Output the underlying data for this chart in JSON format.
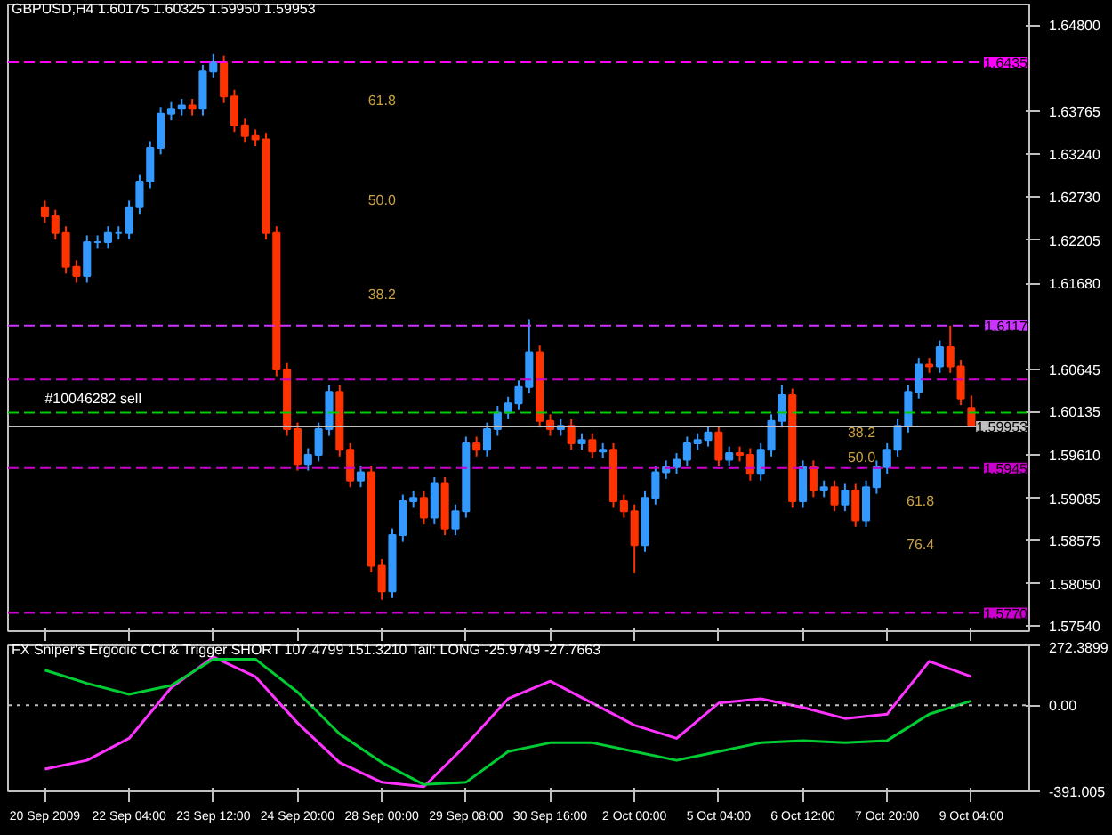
{
  "chart_data": [
    {
      "type": "candlestick",
      "title": "GBPUSD,H4  1.60175 1.60325 1.59950 1.59953",
      "tick_labels": "y",
      "grid": false,
      "categories": [
        "20 Sep 2009",
        null,
        null,
        null,
        null,
        null,
        null,
        null,
        "22 Sep 04:00",
        null,
        null,
        null,
        null,
        null,
        null,
        null,
        "23 Sep 12:00",
        null,
        null,
        null,
        null,
        null,
        null,
        null,
        "24 Sep 20:00",
        null,
        null,
        null,
        null,
        null,
        null,
        null,
        "28 Sep 00:00",
        null,
        null,
        null,
        null,
        null,
        null,
        null,
        "29 Sep 08:00",
        null,
        null,
        null,
        null,
        null,
        null,
        null,
        "30 Sep 16:00",
        null,
        null,
        null,
        null,
        null,
        null,
        null,
        "2 Oct 00:00",
        null,
        null,
        null,
        null,
        null,
        null,
        null,
        "5 Oct 04:00",
        null,
        null,
        null,
        null,
        null,
        null,
        null,
        "6 Oct 12:00",
        null,
        null,
        null,
        null,
        null,
        null,
        null,
        "7 Oct 20:00",
        null,
        null,
        null,
        null,
        null,
        null,
        null,
        "9 Oct 04:00"
      ],
      "colors": [
        "#ff3300",
        "#ff3300",
        "#ff3300",
        "#ff3300",
        "#3399ff",
        "#3399ff",
        "#3399ff",
        "#3399ff",
        "#3399ff",
        "#3399ff",
        "#3399ff",
        "#3399ff",
        "#3399ff",
        "#3399ff",
        "#ff3300",
        "#3399ff",
        "#3399ff",
        "#ff3300",
        "#ff3300",
        "#ff3300",
        "#ff3300",
        "#ff3300",
        "#ff3300",
        "#ff3300",
        "#ff3300",
        "#3399ff",
        "#3399ff",
        "#3399ff",
        "#ff3300",
        "#ff3300",
        "#3399ff",
        "#ff3300",
        "#ff3300",
        "#3399ff",
        "#3399ff",
        "#3399ff",
        "#ff3300",
        "#3399ff",
        "#ff3300",
        "#3399ff",
        "#3399ff",
        "#ff3300",
        "#3399ff",
        "#3399ff",
        "#3399ff",
        "#3399ff",
        "#3399ff",
        "#ff3300",
        "#ff3300",
        "#3399ff",
        "#ff3300",
        "#3399ff",
        "#ff3300",
        "#3399ff",
        "#ff3300",
        "#ff3300",
        "#ff3300",
        "#3399ff",
        "#3399ff",
        "#3399ff",
        "#3399ff",
        "#3399ff",
        "#3399ff",
        "#3399ff",
        "#ff3300",
        "#3399ff",
        "#ff3300",
        "#ff3300",
        "#3399ff",
        "#3399ff",
        "#3399ff",
        "#ff3300",
        "#3399ff",
        "#ff3300",
        "#3399ff",
        "#ff3300",
        "#3399ff",
        "#ff3300",
        "#3399ff",
        "#3399ff",
        "#3399ff",
        "#3399ff",
        "#3399ff",
        "#3399ff",
        "#ff3300",
        "#3399ff",
        "#ff3300",
        "#ff3300",
        "#ff3300"
      ],
      "ohlc": [
        [
          1.626,
          1.6268,
          1.6241,
          1.6249
        ],
        [
          1.6249,
          1.6257,
          1.6221,
          1.6229
        ],
        [
          1.6229,
          1.6237,
          1.618,
          1.6188
        ],
        [
          1.6188,
          1.6196,
          1.6169,
          1.6177
        ],
        [
          1.6177,
          1.6226,
          1.6169,
          1.6218
        ],
        [
          1.6218,
          1.6226,
          1.621,
          1.6218
        ],
        [
          1.6218,
          1.6237,
          1.621,
          1.6229
        ],
        [
          1.6229,
          1.6237,
          1.6221,
          1.6229
        ],
        [
          1.6229,
          1.6268,
          1.6221,
          1.626
        ],
        [
          1.626,
          1.6299,
          1.6252,
          1.6291
        ],
        [
          1.6291,
          1.634,
          1.6283,
          1.6332
        ],
        [
          1.6332,
          1.6381,
          1.6324,
          1.6373
        ],
        [
          1.6373,
          1.6387,
          1.6365,
          1.6379
        ],
        [
          1.6379,
          1.6391,
          1.6371,
          1.6383
        ],
        [
          1.6383,
          1.6391,
          1.6371,
          1.6379
        ],
        [
          1.6379,
          1.6432,
          1.6371,
          1.6424
        ],
        [
          1.6424,
          1.6445,
          1.6416,
          1.6435
        ],
        [
          1.6435,
          1.6443,
          1.6386,
          1.6394
        ],
        [
          1.6394,
          1.6402,
          1.6351,
          1.6359
        ],
        [
          1.6359,
          1.6367,
          1.6338,
          1.6346
        ],
        [
          1.6346,
          1.6354,
          1.6334,
          1.6342
        ],
        [
          1.6342,
          1.635,
          1.6221,
          1.6229
        ],
        [
          1.6229,
          1.6237,
          1.6056,
          1.6064
        ],
        [
          1.6064,
          1.6072,
          1.5984,
          1.5992
        ],
        [
          1.5992,
          1.6,
          1.5942,
          1.595
        ],
        [
          1.595,
          1.5969,
          1.5942,
          1.5961
        ],
        [
          1.5961,
          1.6,
          1.5953,
          1.5992
        ],
        [
          1.5992,
          1.6045,
          1.5984,
          1.6037
        ],
        [
          1.6037,
          1.6045,
          1.5959,
          1.5967
        ],
        [
          1.5967,
          1.5975,
          1.5922,
          1.593
        ],
        [
          1.593,
          1.5948,
          1.5922,
          1.594
        ],
        [
          1.594,
          1.5948,
          1.5819,
          1.5827
        ],
        [
          1.5827,
          1.5835,
          1.5786,
          1.5796
        ],
        [
          1.5796,
          1.5872,
          1.5788,
          1.5864
        ],
        [
          1.5864,
          1.5913,
          1.5856,
          1.5905
        ],
        [
          1.5905,
          1.5917,
          1.5897,
          1.5909
        ],
        [
          1.5909,
          1.5917,
          1.5877,
          1.5885
        ],
        [
          1.5885,
          1.5934,
          1.5877,
          1.5926
        ],
        [
          1.5926,
          1.5934,
          1.5864,
          1.5872
        ],
        [
          1.5872,
          1.5901,
          1.5864,
          1.5893
        ],
        [
          1.5893,
          1.5983,
          1.5885,
          1.5975
        ],
        [
          1.5975,
          1.5983,
          1.5959,
          1.5967
        ],
        [
          1.5967,
          1.6,
          1.5959,
          1.5992
        ],
        [
          1.5992,
          1.602,
          1.5984,
          1.6012
        ],
        [
          1.6012,
          1.6031,
          1.6004,
          1.6023
        ],
        [
          1.6023,
          1.6051,
          1.6015,
          1.6043
        ],
        [
          1.6043,
          1.6125,
          1.6035,
          1.6085
        ],
        [
          1.6085,
          1.6093,
          1.5994,
          1.6002
        ],
        [
          1.6002,
          1.601,
          1.5984,
          1.5992
        ],
        [
          1.5992,
          1.6004,
          1.5984,
          1.5996
        ],
        [
          1.5996,
          1.6004,
          1.5967,
          1.5975
        ],
        [
          1.5975,
          1.5987,
          1.5967,
          1.5979
        ],
        [
          1.5979,
          1.5987,
          1.5957,
          1.5965
        ],
        [
          1.5965,
          1.5975,
          1.5957,
          1.5967
        ],
        [
          1.5967,
          1.5975,
          1.5897,
          1.5905
        ],
        [
          1.5905,
          1.5913,
          1.5885,
          1.5893
        ],
        [
          1.5893,
          1.5901,
          1.5818,
          1.5852
        ],
        [
          1.5852,
          1.5917,
          1.5844,
          1.5909
        ],
        [
          1.5909,
          1.5948,
          1.5901,
          1.594
        ],
        [
          1.594,
          1.5954,
          1.5932,
          1.5946
        ],
        [
          1.5946,
          1.5963,
          1.5938,
          1.5955
        ],
        [
          1.5955,
          1.5983,
          1.5947,
          1.5975
        ],
        [
          1.5975,
          1.5987,
          1.5967,
          1.5979
        ],
        [
          1.5979,
          1.5996,
          1.5971,
          1.5988
        ],
        [
          1.5988,
          1.5996,
          1.5947,
          1.5955
        ],
        [
          1.5955,
          1.5971,
          1.5947,
          1.5963
        ],
        [
          1.5963,
          1.5971,
          1.5953,
          1.5961
        ],
        [
          1.5961,
          1.5969,
          1.593,
          1.5938
        ],
        [
          1.5938,
          1.5975,
          1.593,
          1.5967
        ],
        [
          1.5967,
          1.601,
          1.5959,
          1.6002
        ],
        [
          1.6002,
          1.6045,
          1.5994,
          1.6033
        ],
        [
          1.6033,
          1.6041,
          1.5897,
          1.5905
        ],
        [
          1.5905,
          1.5954,
          1.5897,
          1.5946
        ],
        [
          1.5946,
          1.5954,
          1.591,
          1.5918
        ],
        [
          1.5918,
          1.593,
          1.591,
          1.5922
        ],
        [
          1.5922,
          1.593,
          1.5893,
          1.5901
        ],
        [
          1.5901,
          1.5926,
          1.5893,
          1.5918
        ],
        [
          1.5918,
          1.5926,
          1.5874,
          1.5882
        ],
        [
          1.5882,
          1.593,
          1.5874,
          1.5922
        ],
        [
          1.5922,
          1.5954,
          1.5914,
          1.5946
        ],
        [
          1.5946,
          1.5975,
          1.5938,
          1.5967
        ],
        [
          1.5967,
          1.6004,
          1.5959,
          1.5996
        ],
        [
          1.5996,
          1.6045,
          1.5988,
          1.6037
        ],
        [
          1.6037,
          1.6078,
          1.6029,
          1.607
        ],
        [
          1.607,
          1.6078,
          1.606,
          1.6068
        ],
        [
          1.6068,
          1.6099,
          1.606,
          1.6091
        ],
        [
          1.6091,
          1.6117,
          1.606,
          1.6068
        ],
        [
          1.6068,
          1.6076,
          1.6021,
          1.6029
        ],
        [
          1.60175,
          1.60325,
          1.5995,
          1.59953
        ]
      ],
      "ylim": [
        1.5748,
        1.6505
      ],
      "yticks": [
        {
          "value": 1.648,
          "label": "1.64800"
        },
        {
          "value": 1.63765,
          "label": "1.63765"
        },
        {
          "value": 1.6324,
          "label": "1.63240"
        },
        {
          "value": 1.6273,
          "label": "1.62730"
        },
        {
          "value": 1.62205,
          "label": "1.62205"
        },
        {
          "value": 1.6168,
          "label": "1.61680"
        },
        {
          "value": 1.60645,
          "label": "1.60645"
        },
        {
          "value": 1.60135,
          "label": "1.60135"
        },
        {
          "value": 1.5961,
          "label": "1.59610"
        },
        {
          "value": 1.59085,
          "label": "1.59085"
        },
        {
          "value": 1.58575,
          "label": "1.58575"
        },
        {
          "value": 1.5805,
          "label": "1.58050"
        },
        {
          "value": 1.5754,
          "label": "1.57540"
        }
      ],
      "ref_lines": [
        {
          "axis": "y",
          "value": 1.6435,
          "label": "1.6435",
          "color": "#ff00ff",
          "line_style": "dashed"
        },
        {
          "axis": "y",
          "value": 1.6117,
          "label": "1.6117",
          "color": "#cc33ff",
          "line_style": "dashed"
        },
        {
          "axis": "y",
          "value": 1.6052,
          "color": "#cc00cc",
          "line_style": "dashed"
        },
        {
          "axis": "y",
          "value": 1.6012,
          "color": "#00cc00",
          "line_style": "dashed"
        },
        {
          "axis": "y",
          "value": 1.59953,
          "label": "1.59953",
          "color": "#c0c0c0",
          "line_style": "solid"
        },
        {
          "axis": "y",
          "value": 1.5945,
          "label": "1.5945",
          "color": "#cc00cc",
          "line_style": "dashed"
        },
        {
          "axis": "y",
          "value": 1.577,
          "label": "1.5770",
          "color": "#cc00cc",
          "line_style": "dashed"
        }
      ],
      "annotations": [
        {
          "text": "#10046282 sell",
          "x": "20 Sep 2009",
          "y": 1.6012
        },
        "61.8",
        "50.0",
        "38.2",
        "38.2",
        "50.0",
        "61.8",
        "76.4"
      ]
    },
    {
      "type": "line",
      "title": "FX Sniper's Ergodic CCI & Trigger SHORT 107.4799 151.3210  Tail: LONG -25.9749 -27.7663",
      "grid": false,
      "categories": [
        "20 Sep 2009",
        null,
        "22 Sep 04:00",
        null,
        "23 Sep 12:00",
        null,
        "24 Sep 20:00",
        null,
        "28 Sep 00:00",
        null,
        "29 Sep 08:00",
        null,
        "30 Sep 16:00",
        null,
        "2 Oct 00:00",
        null,
        "5 Oct 04:00",
        null,
        "6 Oct 12:00",
        null,
        "7 Oct 20:00",
        null,
        "9 Oct 04:00"
      ],
      "ylim": [
        -391.005,
        272.3899
      ],
      "yticks": [
        {
          "value": 272.3899,
          "label": "272.3899"
        },
        {
          "value": 0,
          "label": "0.00"
        },
        {
          "value": -391.005,
          "label": "-391.005"
        }
      ],
      "ref_lines": [
        {
          "axis": "y",
          "value": 0,
          "color": "#c0c0c0",
          "line_style": "dotted"
        }
      ],
      "series": [
        {
          "color": "#ff33ff",
          "values": [
            -290,
            -250,
            -150,
            80,
            220,
            130,
            -80,
            -260,
            -350,
            -370,
            -180,
            30,
            110,
            10,
            -90,
            -150,
            10,
            30,
            -10,
            -60,
            -40,
            200,
            130
          ]
        },
        {
          "color": "#00cc33",
          "values": [
            160,
            100,
            50,
            90,
            210,
            210,
            60,
            -130,
            -260,
            -360,
            -350,
            -210,
            -170,
            -170,
            -210,
            -250,
            -210,
            -170,
            -160,
            -170,
            -160,
            -40,
            20
          ]
        }
      ]
    }
  ]
}
